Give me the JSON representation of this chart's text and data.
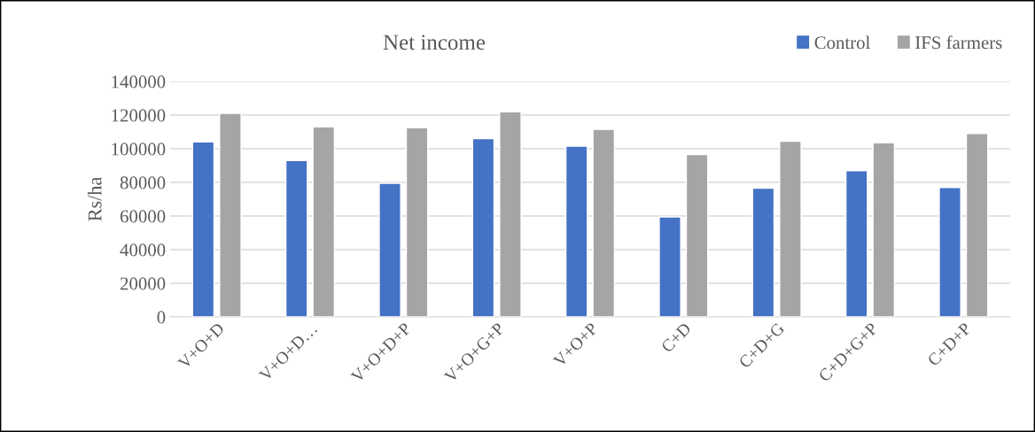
{
  "chart_data": {
    "type": "bar",
    "title": "Net income",
    "ylabel": "Rs/ha",
    "categories": [
      "V+O+D",
      "V+O+D…",
      "V+O+D+P",
      "V+O+G+P",
      "V+O+P",
      "C+D",
      "C+D+G",
      "C+D+G+P",
      "C+D+P"
    ],
    "series": [
      {
        "name": "Control",
        "color": "#4472c4",
        "values": [
          104000,
          93000,
          79500,
          106000,
          101500,
          59500,
          76500,
          87000,
          77000
        ]
      },
      {
        "name": "IFS farmers",
        "color": "#a5a5a5",
        "values": [
          121000,
          113000,
          112500,
          122000,
          111500,
          96500,
          104500,
          103500,
          109000
        ]
      }
    ],
    "ylim": [
      0,
      140000
    ],
    "yticks": [
      0,
      20000,
      40000,
      60000,
      80000,
      100000,
      120000,
      140000
    ],
    "grid": "y",
    "legend": "top right"
  }
}
